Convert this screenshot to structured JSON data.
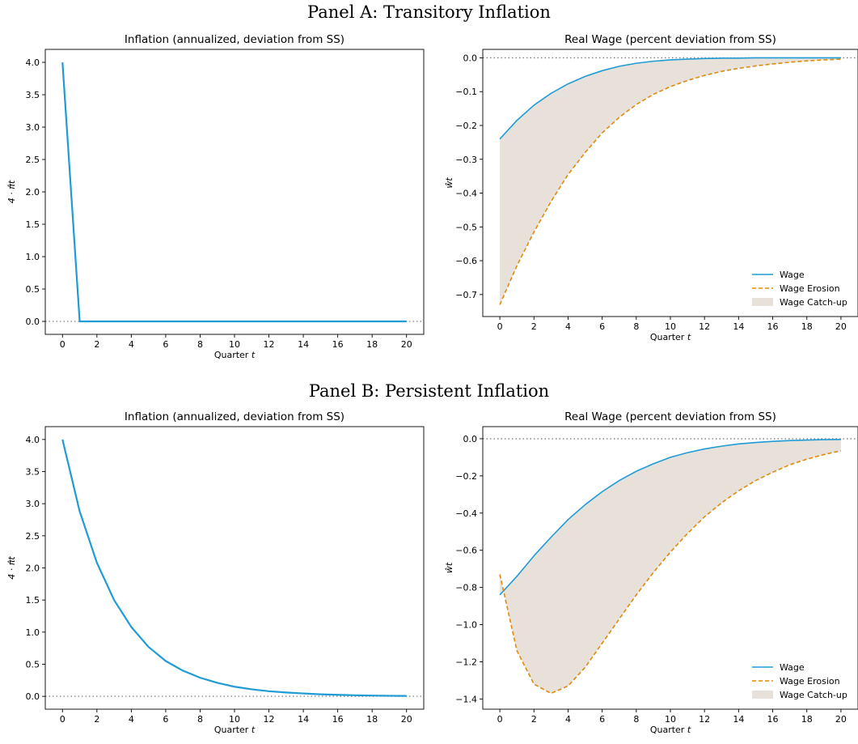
{
  "panels": [
    {
      "title": "Panel A: Transitory Inflation"
    },
    {
      "title": "Panel B: Persistent Inflation"
    }
  ],
  "colors": {
    "wage": "#1f9bd6",
    "erosion": "#e08a0b",
    "catchup": "#e7e1da",
    "inflation": "#1f9bd6",
    "zero_line": "#7f7f7f"
  },
  "chart_data": [
    {
      "type": "line",
      "title": "Inflation (annualized, deviation from SS)",
      "xlabel": "Quarter t",
      "ylabel": "4 · π̂t",
      "xlim": [
        -1,
        21
      ],
      "ylim": [
        -0.2,
        4.2
      ],
      "xticks": [
        0,
        2,
        4,
        6,
        8,
        10,
        12,
        14,
        16,
        18,
        20
      ],
      "yticks": [
        0.0,
        0.5,
        1.0,
        1.5,
        2.0,
        2.5,
        3.0,
        3.5,
        4.0
      ],
      "ytick_labels": [
        "0.0",
        "0.5",
        "1.0",
        "1.5",
        "2.0",
        "2.5",
        "3.0",
        "3.5",
        "4.0"
      ],
      "zero_line": true,
      "series": [
        {
          "key": "inflation",
          "style": "solid",
          "x": [
            0,
            1,
            2,
            3,
            4,
            5,
            6,
            7,
            8,
            9,
            10,
            11,
            12,
            13,
            14,
            15,
            16,
            17,
            18,
            19,
            20
          ],
          "y": [
            4.0,
            0,
            0,
            0,
            0,
            0,
            0,
            0,
            0,
            0,
            0,
            0,
            0,
            0,
            0,
            0,
            0,
            0,
            0,
            0,
            0
          ]
        }
      ]
    },
    {
      "type": "line",
      "title": "Real Wage (percent deviation from SS)",
      "xlabel": "Quarter t",
      "ylabel": "ŵt",
      "xlim": [
        -1,
        21
      ],
      "ylim": [
        -0.765,
        0.025
      ],
      "xticks": [
        0,
        2,
        4,
        6,
        8,
        10,
        12,
        14,
        16,
        18,
        20
      ],
      "yticks": [
        0.0,
        -0.1,
        -0.2,
        -0.3,
        -0.4,
        -0.5,
        -0.6,
        -0.7
      ],
      "ytick_labels": [
        "0.0",
        "−0.1",
        "−0.2",
        "−0.3",
        "−0.4",
        "−0.5",
        "−0.6",
        "−0.7"
      ],
      "zero_line": true,
      "legend": "lower-right",
      "series": [
        {
          "name": "Wage",
          "key": "wage",
          "style": "solid",
          "x": [
            0,
            1,
            2,
            3,
            4,
            5,
            6,
            7,
            8,
            9,
            10,
            11,
            12,
            13,
            14,
            15,
            16,
            17,
            18,
            19,
            20
          ],
          "y": [
            -0.24,
            -0.185,
            -0.14,
            -0.105,
            -0.077,
            -0.055,
            -0.038,
            -0.025,
            -0.016,
            -0.01,
            -0.006,
            -0.004,
            -0.002,
            -0.001,
            -0.001,
            0,
            0,
            0,
            0,
            0,
            0
          ]
        },
        {
          "name": "Wage Erosion",
          "key": "erosion",
          "style": "dashed",
          "x": [
            0,
            1,
            2,
            3,
            4,
            5,
            6,
            7,
            8,
            9,
            10,
            11,
            12,
            13,
            14,
            15,
            16,
            17,
            18,
            19,
            20
          ],
          "y": [
            -0.73,
            -0.615,
            -0.515,
            -0.425,
            -0.345,
            -0.28,
            -0.222,
            -0.176,
            -0.138,
            -0.108,
            -0.085,
            -0.067,
            -0.052,
            -0.04,
            -0.031,
            -0.024,
            -0.018,
            -0.013,
            -0.009,
            -0.006,
            -0.004
          ]
        }
      ],
      "fill": {
        "name": "Wage Catch-up",
        "between": [
          "wage",
          "erosion"
        ]
      }
    },
    {
      "type": "line",
      "title": "Inflation (annualized, deviation from SS)",
      "xlabel": "Quarter t",
      "ylabel": "4 · π̂t",
      "xlim": [
        -1,
        21
      ],
      "ylim": [
        -0.2,
        4.2
      ],
      "xticks": [
        0,
        2,
        4,
        6,
        8,
        10,
        12,
        14,
        16,
        18,
        20
      ],
      "yticks": [
        0.0,
        0.5,
        1.0,
        1.5,
        2.0,
        2.5,
        3.0,
        3.5,
        4.0
      ],
      "ytick_labels": [
        "0.0",
        "0.5",
        "1.0",
        "1.5",
        "2.0",
        "2.5",
        "3.0",
        "3.5",
        "4.0"
      ],
      "zero_line": true,
      "series": [
        {
          "key": "inflation",
          "style": "solid",
          "x": [
            0,
            1,
            2,
            3,
            4,
            5,
            6,
            7,
            8,
            9,
            10,
            11,
            12,
            13,
            14,
            15,
            16,
            17,
            18,
            19,
            20
          ],
          "y": [
            4.0,
            2.88,
            2.08,
            1.5,
            1.08,
            0.77,
            0.55,
            0.4,
            0.29,
            0.21,
            0.15,
            0.11,
            0.08,
            0.06,
            0.045,
            0.032,
            0.024,
            0.017,
            0.012,
            0.009,
            0.006
          ]
        }
      ]
    },
    {
      "type": "line",
      "title": "Real Wage (percent deviation from SS)",
      "xlabel": "Quarter t",
      "ylabel": "ŵt",
      "xlim": [
        -1,
        21
      ],
      "ylim": [
        -1.455,
        0.065
      ],
      "xticks": [
        0,
        2,
        4,
        6,
        8,
        10,
        12,
        14,
        16,
        18,
        20
      ],
      "yticks": [
        0.0,
        -0.2,
        -0.4,
        -0.6,
        -0.8,
        -1.0,
        -1.2,
        -1.4
      ],
      "ytick_labels": [
        "0.0",
        "−0.2",
        "−0.4",
        "−0.6",
        "−0.8",
        "−1.0",
        "−1.2",
        "−1.4"
      ],
      "zero_line": true,
      "legend": "lower-right",
      "series": [
        {
          "name": "Wage",
          "key": "wage",
          "style": "solid",
          "x": [
            0,
            1,
            2,
            3,
            4,
            5,
            6,
            7,
            8,
            9,
            10,
            11,
            12,
            13,
            14,
            15,
            16,
            17,
            18,
            19,
            20
          ],
          "y": [
            -0.84,
            -0.74,
            -0.63,
            -0.53,
            -0.435,
            -0.355,
            -0.285,
            -0.225,
            -0.175,
            -0.135,
            -0.1,
            -0.075,
            -0.055,
            -0.04,
            -0.028,
            -0.02,
            -0.014,
            -0.01,
            -0.007,
            -0.005,
            -0.004
          ]
        },
        {
          "name": "Wage Erosion",
          "key": "erosion",
          "style": "dashed",
          "x": [
            0,
            1,
            2,
            3,
            4,
            5,
            6,
            7,
            8,
            9,
            10,
            11,
            12,
            13,
            14,
            15,
            16,
            17,
            18,
            19,
            20
          ],
          "y": [
            -0.73,
            -1.14,
            -1.32,
            -1.37,
            -1.33,
            -1.23,
            -1.1,
            -0.97,
            -0.84,
            -0.72,
            -0.61,
            -0.51,
            -0.42,
            -0.345,
            -0.28,
            -0.225,
            -0.18,
            -0.14,
            -0.11,
            -0.085,
            -0.065
          ]
        }
      ],
      "fill": {
        "name": "Wage Catch-up",
        "between": [
          "wage",
          "erosion"
        ]
      }
    }
  ]
}
